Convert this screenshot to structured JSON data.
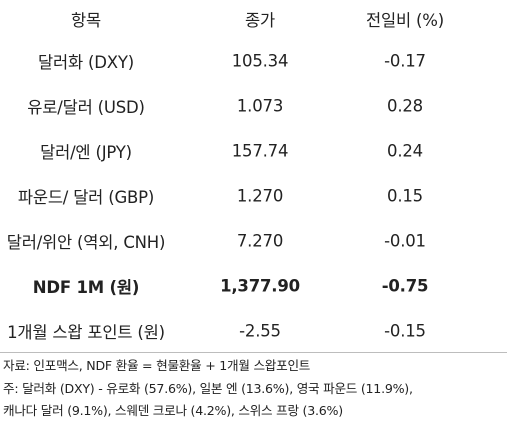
{
  "table": {
    "headers": [
      "항목",
      "종가",
      "전일비 (%)"
    ],
    "rows": [
      {
        "item": "달러화 (DXY)",
        "close": "105.34",
        "change": "-0.17"
      },
      {
        "item": "유로/달러 (USD)",
        "close": "1.073",
        "change": "0.28"
      },
      {
        "item": "달러/엔 (JPY)",
        "close": "157.74",
        "change": "0.24"
      },
      {
        "item": "파운드/ 달러 (GBP)",
        "close": "1.270",
        "change": "0.15"
      },
      {
        "item": "달러/위안 (역외, CNH)",
        "close": "7.270",
        "change": "-0.01"
      },
      {
        "item": "NDF 1M (원)",
        "close": "1,377.90",
        "change": "-0.75"
      },
      {
        "item": "1개월 스왑 포인트 (원)",
        "close": "-2.55",
        "change": "-0.15"
      }
    ]
  },
  "notes": {
    "source": "자료: 인포맥스, NDF 환율 = 현물환율 + 1개월 스왑포인트",
    "note_line1": "주: 달러화 (DXY) - 유로화 (57.6%), 일본 엔 (13.6%), 영국 파운드 (11.9%),",
    "note_line2": "캐나다 달러 (9.1%), 스웨덴 크로나 (4.2%), 스위스 프랑 (3.6%)"
  }
}
